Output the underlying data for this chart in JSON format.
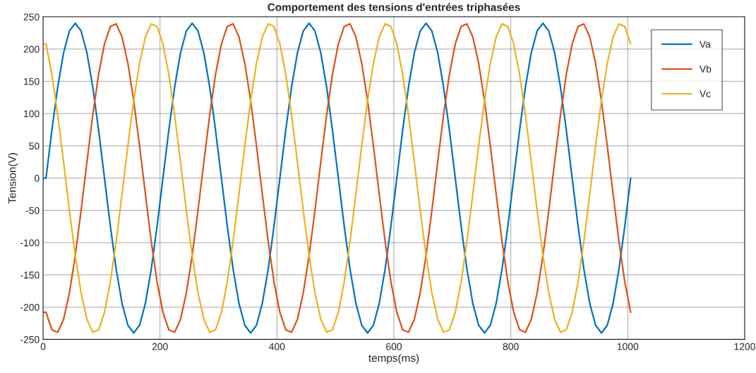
{
  "chart_data": {
    "type": "line",
    "title": "Comportement des tensions d'entrées triphasées",
    "xlabel": "temps(ms)",
    "ylabel": "Tension(V)",
    "x": [
      0,
      5,
      15,
      25,
      35,
      45,
      55,
      65,
      75,
      85,
      95,
      105,
      115,
      125,
      135,
      145,
      155,
      165,
      175,
      185,
      195,
      205,
      215,
      225,
      235,
      245,
      255,
      265,
      275,
      285,
      295,
      305,
      315,
      325,
      335,
      345,
      355,
      365,
      375,
      385,
      395,
      405,
      415,
      425,
      435,
      445,
      455,
      465,
      475,
      485,
      495,
      505,
      515,
      525,
      535,
      545,
      555,
      565,
      575,
      585,
      595,
      605,
      615,
      625,
      635,
      645,
      655,
      665,
      675,
      685,
      695,
      705,
      715,
      725,
      735,
      745,
      755,
      765,
      775,
      785,
      795,
      805,
      815,
      825,
      835,
      845,
      855,
      865,
      875,
      885,
      895,
      905,
      915,
      925,
      935,
      945,
      955,
      965,
      975,
      985,
      995,
      1005
    ],
    "series": [
      {
        "name": "Va",
        "color": "#0072bd",
        "values": [
          0,
          0,
          74,
          141,
          194,
          228,
          240,
          228,
          194,
          141,
          74,
          0,
          -74,
          -141,
          -194,
          -228,
          -240,
          -228,
          -194,
          -141,
          -74,
          0,
          74,
          141,
          194,
          228,
          240,
          228,
          194,
          141,
          74,
          0,
          -74,
          -141,
          -194,
          -228,
          -240,
          -228,
          -194,
          -141,
          -74,
          0,
          74,
          141,
          194,
          228,
          240,
          228,
          194,
          141,
          74,
          0,
          -74,
          -141,
          -194,
          -228,
          -240,
          -228,
          -194,
          -141,
          -74,
          0,
          74,
          141,
          194,
          228,
          240,
          228,
          194,
          141,
          74,
          0,
          -74,
          -141,
          -194,
          -228,
          -240,
          -228,
          -194,
          -141,
          -74,
          0,
          74,
          141,
          194,
          228,
          240,
          228,
          194,
          141,
          74,
          0,
          -74,
          -141,
          -194,
          -228,
          -240,
          -228,
          -194,
          -141,
          -74,
          0
        ]
      },
      {
        "name": "Vb",
        "color": "#d95319",
        "values": [
          -208,
          -208,
          -235,
          -239,
          -219,
          -178,
          -120,
          -50,
          25,
          98,
          161,
          208,
          235,
          239,
          219,
          178,
          120,
          50,
          -25,
          -98,
          -161,
          -208,
          -235,
          -239,
          -219,
          -178,
          -120,
          -50,
          25,
          98,
          161,
          208,
          235,
          239,
          219,
          178,
          120,
          50,
          -25,
          -98,
          -161,
          -208,
          -235,
          -239,
          -219,
          -178,
          -120,
          -50,
          25,
          98,
          161,
          208,
          235,
          239,
          219,
          178,
          120,
          50,
          -25,
          -98,
          -161,
          -208,
          -235,
          -239,
          -219,
          -178,
          -120,
          -50,
          25,
          98,
          161,
          208,
          235,
          239,
          219,
          178,
          120,
          50,
          -25,
          -98,
          -161,
          -208,
          -235,
          -239,
          -219,
          -178,
          -120,
          -50,
          25,
          98,
          161,
          208,
          235,
          239,
          219,
          178,
          120,
          50,
          -25,
          -98,
          -161,
          -208
        ]
      },
      {
        "name": "Vc",
        "color": "#edb120",
        "values": [
          208,
          208,
          161,
          98,
          25,
          -50,
          -120,
          -178,
          -219,
          -239,
          -235,
          -208,
          -161,
          -98,
          -25,
          50,
          120,
          178,
          219,
          239,
          235,
          208,
          161,
          98,
          25,
          -50,
          -120,
          -178,
          -219,
          -239,
          -235,
          -208,
          -161,
          -98,
          -25,
          50,
          120,
          178,
          219,
          239,
          235,
          208,
          161,
          98,
          25,
          -50,
          -120,
          -178,
          -219,
          -239,
          -235,
          -208,
          -161,
          -98,
          -25,
          50,
          120,
          178,
          219,
          239,
          235,
          208,
          161,
          98,
          25,
          -50,
          -120,
          -178,
          -219,
          -239,
          -235,
          -208,
          -161,
          -98,
          -25,
          50,
          120,
          178,
          219,
          239,
          235,
          208,
          161,
          98,
          25,
          -50,
          -120,
          -178,
          -219,
          -239,
          -235,
          -208,
          -161,
          -98,
          -25,
          50,
          120,
          178,
          219,
          239,
          235,
          208
        ]
      }
    ],
    "xlim": [
      0,
      1200
    ],
    "xticks": [
      0,
      200,
      400,
      600,
      800,
      1000,
      1200
    ],
    "ylim": [
      -250,
      250
    ],
    "yticks": [
      -250,
      -200,
      -150,
      -100,
      -50,
      0,
      50,
      100,
      150,
      200,
      250
    ],
    "grid": true,
    "legend": "top right",
    "marker": "none",
    "line_style": "solid"
  }
}
